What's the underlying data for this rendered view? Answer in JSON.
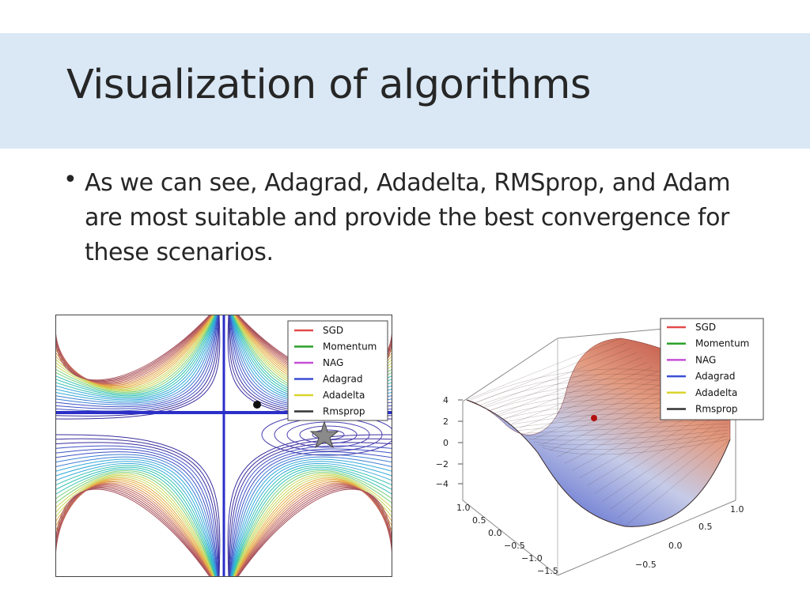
{
  "slide": {
    "title": "Visualization of algorithms",
    "bullet": "As we can see, Adagrad, Adadelta, RMSprop, and Adam are most suitable and provide the best convergence for these scenarios."
  },
  "figures": {
    "left": {
      "type": "contour",
      "legend": [
        "SGD",
        "Momentum",
        "NAG",
        "Adagrad",
        "Adadelta",
        "Rmsprop"
      ],
      "legend_colors": [
        "#e34a4a",
        "#2ca02c",
        "#c64fd8",
        "#3b4fd6",
        "#d9d42e",
        "#333333"
      ],
      "markers": [
        "black-dot",
        "gray-star"
      ]
    },
    "right": {
      "type": "surface3d",
      "legend": [
        "SGD",
        "Momentum",
        "NAG",
        "Adagrad",
        "Adadelta",
        "Rmsprop"
      ],
      "legend_colors": [
        "#e34a4a",
        "#2ca02c",
        "#c64fd8",
        "#3b4fd6",
        "#d9d42e",
        "#333333"
      ],
      "z_ticks": [
        "4",
        "2",
        "0",
        "−2",
        "−4"
      ],
      "y_ticks": [
        "1.0",
        "0.5",
        "0.0",
        "−0.5",
        "−1.0",
        "−1.5"
      ],
      "x_ticks": [
        "1.0",
        "0.5",
        "0.0",
        "−0.5"
      ]
    }
  }
}
